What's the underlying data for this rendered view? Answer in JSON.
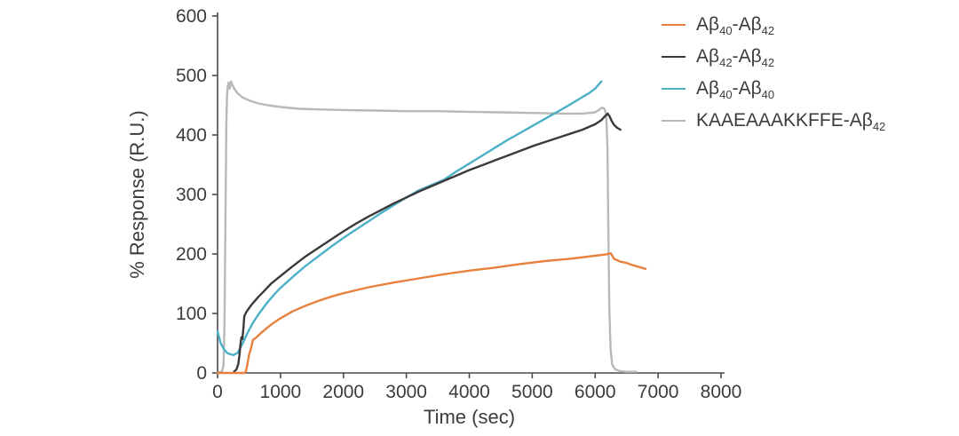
{
  "chart_data": {
    "type": "line",
    "title": "",
    "xlabel": "Time (sec)",
    "ylabel": "% Response (R.U.)",
    "xlim": [
      0,
      8000
    ],
    "ylim": [
      0,
      600
    ],
    "xticks": [
      0,
      1000,
      2000,
      3000,
      4000,
      5000,
      6000,
      7000,
      8000
    ],
    "yticks": [
      0,
      100,
      200,
      300,
      400,
      500,
      600
    ],
    "grid": false,
    "legend_position": "top-right",
    "series": [
      {
        "name": "Aβ{40}-Aβ{42}",
        "color": "#e8813d",
        "points": [
          [
            0,
            0
          ],
          [
            430,
            0
          ],
          [
            450,
            3
          ],
          [
            470,
            12
          ],
          [
            500,
            30
          ],
          [
            540,
            45
          ],
          [
            560,
            55
          ],
          [
            580,
            57
          ],
          [
            620,
            60
          ],
          [
            700,
            68
          ],
          [
            800,
            77
          ],
          [
            900,
            85
          ],
          [
            1000,
            92
          ],
          [
            1200,
            104
          ],
          [
            1400,
            113
          ],
          [
            1600,
            121
          ],
          [
            1800,
            128
          ],
          [
            2000,
            134
          ],
          [
            2400,
            144
          ],
          [
            2800,
            152
          ],
          [
            3200,
            159
          ],
          [
            3600,
            166
          ],
          [
            4000,
            172
          ],
          [
            4400,
            177
          ],
          [
            4800,
            183
          ],
          [
            5200,
            188
          ],
          [
            5600,
            192
          ],
          [
            6000,
            197
          ],
          [
            6150,
            199
          ],
          [
            6250,
            201
          ],
          [
            6300,
            192
          ],
          [
            6400,
            187
          ],
          [
            6500,
            185
          ],
          [
            6600,
            181
          ],
          [
            6700,
            178
          ],
          [
            6800,
            175
          ]
        ]
      },
      {
        "name": "Aβ{42}-Aβ{42}",
        "color": "#3a3a3a",
        "points": [
          [
            260,
            2
          ],
          [
            300,
            6
          ],
          [
            330,
            15
          ],
          [
            350,
            32
          ],
          [
            365,
            50
          ],
          [
            380,
            60
          ],
          [
            395,
            57
          ],
          [
            410,
            75
          ],
          [
            425,
            95
          ],
          [
            450,
            101
          ],
          [
            480,
            106
          ],
          [
            550,
            116
          ],
          [
            650,
            128
          ],
          [
            750,
            139
          ],
          [
            850,
            150
          ],
          [
            1000,
            163
          ],
          [
            1200,
            180
          ],
          [
            1400,
            196
          ],
          [
            1600,
            210
          ],
          [
            1800,
            224
          ],
          [
            2000,
            238
          ],
          [
            2200,
            251
          ],
          [
            2400,
            263
          ],
          [
            2600,
            274
          ],
          [
            2800,
            285
          ],
          [
            3000,
            295
          ],
          [
            3200,
            305
          ],
          [
            3400,
            314
          ],
          [
            3600,
            323
          ],
          [
            3800,
            332
          ],
          [
            4000,
            341
          ],
          [
            4200,
            349
          ],
          [
            4400,
            357
          ],
          [
            4600,
            365
          ],
          [
            4800,
            373
          ],
          [
            5000,
            381
          ],
          [
            5200,
            388
          ],
          [
            5400,
            395
          ],
          [
            5600,
            402
          ],
          [
            5800,
            409
          ],
          [
            6000,
            418
          ],
          [
            6100,
            425
          ],
          [
            6150,
            431
          ],
          [
            6200,
            436
          ],
          [
            6230,
            431
          ],
          [
            6260,
            424
          ],
          [
            6300,
            417
          ],
          [
            6350,
            412
          ],
          [
            6400,
            409
          ]
        ]
      },
      {
        "name": "Aβ{40}-Aβ{40}",
        "color": "#4cb0c6",
        "points": [
          [
            0,
            70
          ],
          [
            50,
            50
          ],
          [
            100,
            40
          ],
          [
            160,
            33
          ],
          [
            250,
            30
          ],
          [
            320,
            34
          ],
          [
            400,
            50
          ],
          [
            480,
            68
          ],
          [
            560,
            84
          ],
          [
            660,
            100
          ],
          [
            780,
            117
          ],
          [
            900,
            132
          ],
          [
            1000,
            143
          ],
          [
            1200,
            162
          ],
          [
            1400,
            180
          ],
          [
            1600,
            196
          ],
          [
            1800,
            212
          ],
          [
            2000,
            227
          ],
          [
            2200,
            241
          ],
          [
            2400,
            255
          ],
          [
            2600,
            269
          ],
          [
            2800,
            282
          ],
          [
            3000,
            295
          ],
          [
            3200,
            307
          ],
          [
            3400,
            316
          ],
          [
            3600,
            325
          ],
          [
            3800,
            339
          ],
          [
            4000,
            352
          ],
          [
            4200,
            365
          ],
          [
            4400,
            378
          ],
          [
            4600,
            391
          ],
          [
            4800,
            403
          ],
          [
            5000,
            415
          ],
          [
            5200,
            427
          ],
          [
            5400,
            439
          ],
          [
            5600,
            451
          ],
          [
            5800,
            464
          ],
          [
            5900,
            470
          ],
          [
            6000,
            478
          ],
          [
            6050,
            484
          ],
          [
            6100,
            490
          ]
        ]
      },
      {
        "name": "KAAEAAAKKFFE-Aβ{42}",
        "color": "#b8b8b8",
        "points": [
          [
            0,
            0
          ],
          [
            70,
            3
          ],
          [
            95,
            12
          ],
          [
            110,
            80
          ],
          [
            125,
            260
          ],
          [
            140,
            420
          ],
          [
            150,
            462
          ],
          [
            160,
            480
          ],
          [
            175,
            488
          ],
          [
            195,
            478
          ],
          [
            215,
            490
          ],
          [
            235,
            484
          ],
          [
            270,
            477
          ],
          [
            320,
            470
          ],
          [
            400,
            463
          ],
          [
            500,
            458
          ],
          [
            650,
            453
          ],
          [
            800,
            450
          ],
          [
            1000,
            447
          ],
          [
            1300,
            444
          ],
          [
            1600,
            443
          ],
          [
            2000,
            442
          ],
          [
            2500,
            441
          ],
          [
            3000,
            440
          ],
          [
            3500,
            440
          ],
          [
            4000,
            439
          ],
          [
            4500,
            438
          ],
          [
            5000,
            437
          ],
          [
            5500,
            436
          ],
          [
            5800,
            436
          ],
          [
            6000,
            438
          ],
          [
            6060,
            442
          ],
          [
            6110,
            446
          ],
          [
            6150,
            444
          ],
          [
            6175,
            432
          ],
          [
            6195,
            380
          ],
          [
            6210,
            240
          ],
          [
            6225,
            110
          ],
          [
            6245,
            40
          ],
          [
            6270,
            14
          ],
          [
            6320,
            6
          ],
          [
            6400,
            3
          ],
          [
            6500,
            2
          ],
          [
            6650,
            2
          ]
        ]
      }
    ]
  },
  "colors": {
    "axis": "#4a4a4a",
    "text": "#3c3c3c",
    "background": "#ffffff"
  }
}
